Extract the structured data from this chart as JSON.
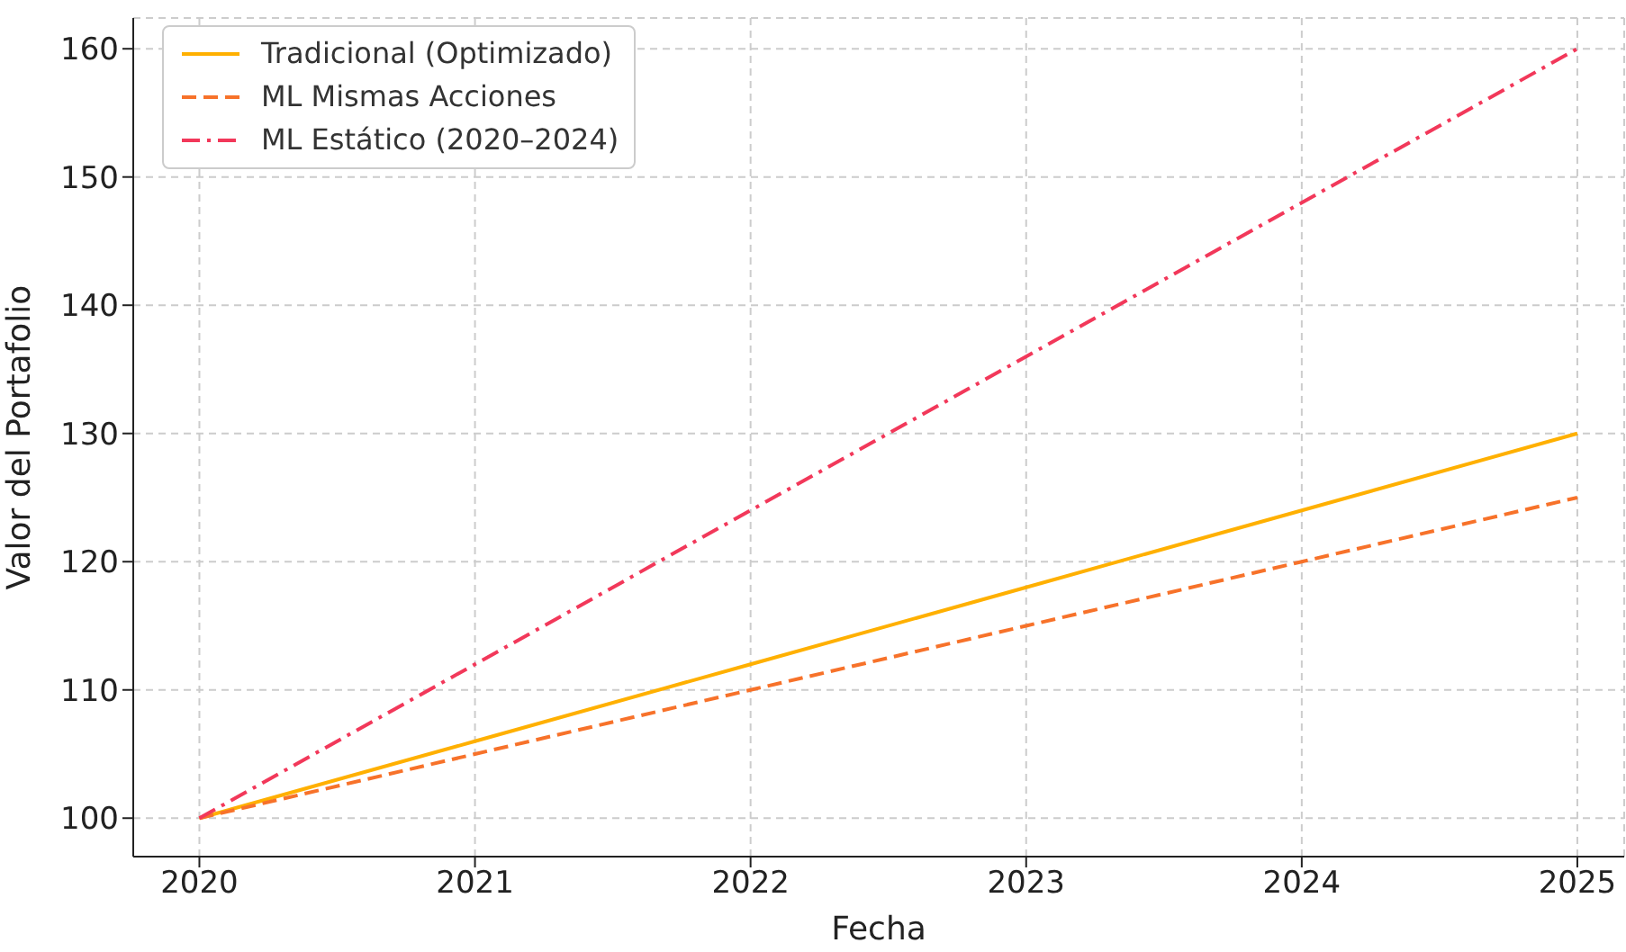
{
  "chart_data": {
    "type": "line",
    "xlabel": "Fecha",
    "ylabel": "Valor del Portafolio",
    "x": [
      2020,
      2021,
      2022,
      2023,
      2024,
      2025
    ],
    "series": [
      {
        "name": "Tradicional (Optimizado)",
        "color": "#ffb000",
        "values": [
          100,
          106,
          112,
          118,
          124,
          130
        ],
        "line_style": "solid"
      },
      {
        "name": "ML Mismas Acciones",
        "color": "#f7722a",
        "values": [
          100,
          105,
          110,
          115,
          120,
          125
        ],
        "line_style": "dashed"
      },
      {
        "name": "ML Estático (2020–2024)",
        "color": "#f2385a",
        "values": [
          100,
          112,
          124,
          136,
          148,
          160
        ],
        "line_style": "dashdot"
      }
    ],
    "xlim": [
      2019.76,
      2025.17
    ],
    "xticks": [
      2020,
      2021,
      2022,
      2023,
      2024,
      2025
    ],
    "ylim": [
      97,
      162.4
    ],
    "yticks": [
      100,
      110,
      120,
      130,
      140,
      150,
      160
    ],
    "grid": true,
    "legend": "top left",
    "marker": "none"
  }
}
